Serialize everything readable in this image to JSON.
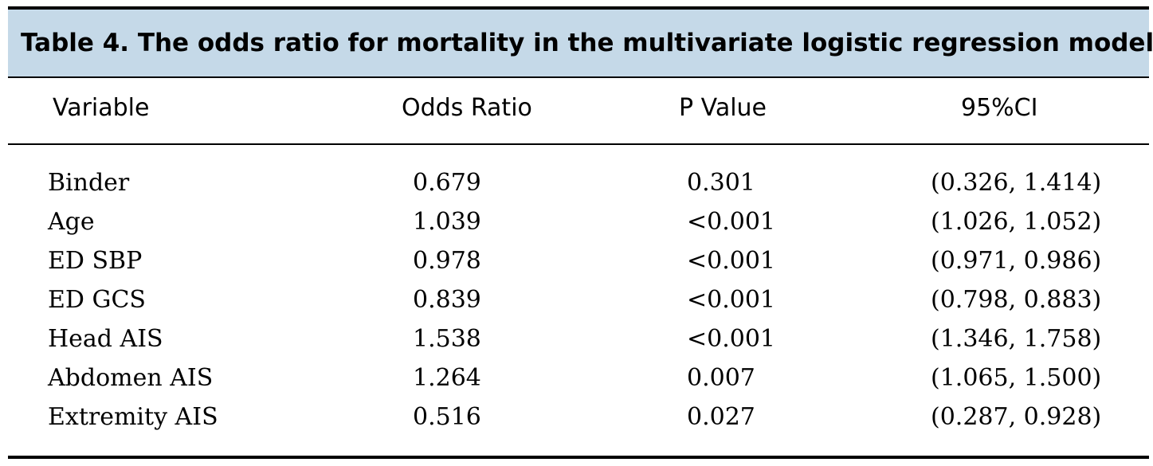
{
  "caption": "Table 4. The odds ratio for mortality in the multivariate logistic regression model.",
  "columns": [
    "Variable",
    "Odds Ratio",
    "P Value",
    "95%CI"
  ],
  "rows": [
    {
      "variable": "Binder",
      "odds_ratio": "0.679",
      "p_value": "0.301",
      "ci": "(0.326,  1.414)"
    },
    {
      "variable": "Age",
      "odds_ratio": "1.039",
      "p_value": "<0.001",
      "ci": "(1.026,  1.052)"
    },
    {
      "variable": "ED SBP",
      "odds_ratio": "0.978",
      "p_value": "<0.001",
      "ci": "(0.971,  0.986)"
    },
    {
      "variable": "ED GCS",
      "odds_ratio": "0.839",
      "p_value": "<0.001",
      "ci": "(0.798,  0.883)"
    },
    {
      "variable": "Head AIS",
      "odds_ratio": "1.538",
      "p_value": "<0.001",
      "ci": "(1.346,  1.758)"
    },
    {
      "variable": "Abdomen AIS",
      "odds_ratio": "1.264",
      "p_value": "0.007",
      "ci": "(1.065,  1.500)"
    },
    {
      "variable": "Extremity AIS",
      "odds_ratio": "0.516",
      "p_value": "0.027",
      "ci": "(0.287,  0.928)"
    }
  ],
  "colors": {
    "caption_background": "#c5d9e8",
    "rules": "#000000"
  }
}
